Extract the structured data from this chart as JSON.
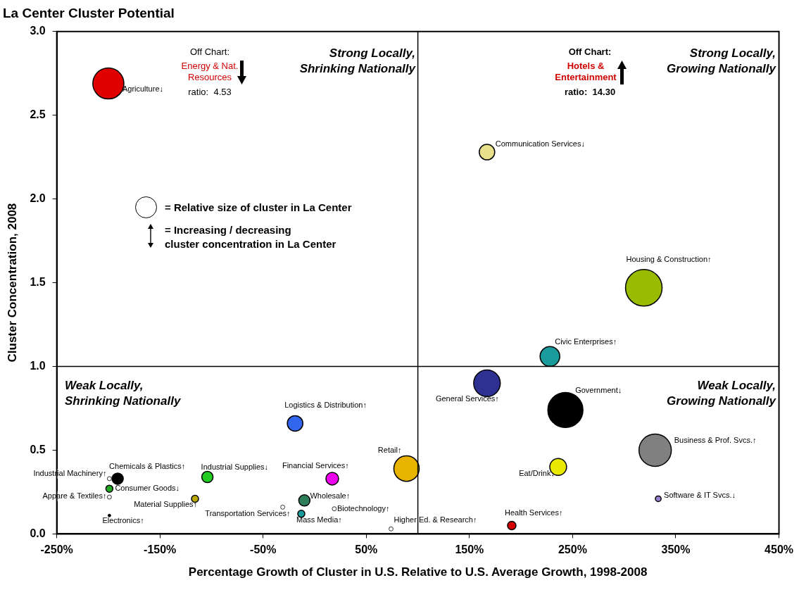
{
  "chart_data": {
    "type": "bubble",
    "title": "La Center Cluster Potential",
    "xlabel": "Percentage Growth of Cluster in U.S. Relative to U.S. Average Growth, 1998-2008",
    "ylabel": "Cluster Concentration, 2008",
    "xlim": [
      -250,
      450
    ],
    "xticks": [
      {
        "value": -250,
        "label": "-250%"
      },
      {
        "value": -150,
        "label": "-150%"
      },
      {
        "value": -50,
        "label": "-50%"
      },
      {
        "value": 50,
        "label": "50%"
      },
      {
        "value": 150,
        "label": "150%"
      },
      {
        "value": 250,
        "label": "250%"
      },
      {
        "value": 350,
        "label": "350%"
      },
      {
        "value": 450,
        "label": "450%"
      }
    ],
    "ylim": [
      0,
      3
    ],
    "yticks": [
      {
        "value": 0,
        "label": "0.0"
      },
      {
        "value": 0.5,
        "label": "0.5"
      },
      {
        "value": 1,
        "label": "1.0"
      },
      {
        "value": 1.5,
        "label": "1.5"
      },
      {
        "value": 2,
        "label": "2.0"
      },
      {
        "value": 2.5,
        "label": "2.5"
      },
      {
        "value": 3,
        "label": "3.0"
      }
    ],
    "grid": false,
    "legend": false,
    "ref_lines": [
      {
        "axis": "x",
        "value": 100,
        "color": "#000000"
      },
      {
        "axis": "y",
        "value": 1,
        "color": "#000000"
      }
    ],
    "annotations": [
      "Strong Locally,\nShrinking Nationally",
      "Strong Locally,\nGrowing Nationally",
      "Weak Locally,\nShrinking Nationally",
      "Weak Locally,\nGrowing Nationally",
      "Off Chart:",
      "Energy & Nat.\nResources",
      "ratio:  4.53",
      "Off Chart:",
      "Hotels &\nEntertainment",
      "ratio:  14.30",
      "= Relative size of cluster in La Center",
      "= Increasing / decreasing\ncluster concentration in La Center"
    ],
    "series": [
      {
        "name": "Agriculture↓",
        "color": "#e00000",
        "x": [
          -200
        ],
        "values": [
          2.69
        ],
        "sizes": [
          0.72
        ]
      },
      {
        "name": "Communication Services↓",
        "color": "#e8e08a",
        "x": [
          167
        ],
        "values": [
          2.28
        ],
        "sizes": [
          0.18
        ]
      },
      {
        "name": "Housing & Construction↑",
        "color": "#99bb00",
        "x": [
          319
        ],
        "values": [
          1.47
        ],
        "sizes": [
          1
        ]
      },
      {
        "name": "Civic Enterprises↑",
        "color": "#1a9a9a",
        "x": [
          228
        ],
        "values": [
          1.06
        ],
        "sizes": [
          0.29
        ]
      },
      {
        "name": "General Services↑",
        "color": "#2e3192",
        "x": [
          167
        ],
        "values": [
          0.9
        ],
        "sizes": [
          0.53
        ]
      },
      {
        "name": "Government↓",
        "color": "#000000",
        "x": [
          243
        ],
        "values": [
          0.74
        ],
        "sizes": [
          0.92
        ]
      },
      {
        "name": "Business & Prof. Svcs.↑",
        "color": "#808080",
        "x": [
          330
        ],
        "values": [
          0.5
        ],
        "sizes": [
          0.78
        ]
      },
      {
        "name": "Eat/Drink↓",
        "color": "#e8e800",
        "x": [
          236
        ],
        "values": [
          0.4
        ],
        "sizes": [
          0.21
        ]
      },
      {
        "name": "Software & IT Svcs.↓",
        "color": "#9a7fcf",
        "x": [
          333
        ],
        "values": [
          0.21
        ],
        "sizes": [
          0.024
        ]
      },
      {
        "name": "Health Services↑",
        "color": "#d40000",
        "x": [
          191
        ],
        "values": [
          0.05
        ],
        "sizes": [
          0.053
        ]
      },
      {
        "name": "Retail↑",
        "color": "#e8b400",
        "x": [
          89
        ],
        "values": [
          0.39
        ],
        "sizes": [
          0.48
        ]
      },
      {
        "name": "Higher Ed. & Research↑",
        "color": "#ffffff",
        "x": [
          74
        ],
        "values": [
          0.03
        ],
        "sizes": [
          0.013
        ]
      },
      {
        "name": "Logistics & Distribution↑",
        "color": "#3366ee",
        "x": [
          -19
        ],
        "values": [
          0.66
        ],
        "sizes": [
          0.18
        ]
      },
      {
        "name": "Financial Services↑",
        "color": "#ee00ee",
        "x": [
          17
        ],
        "values": [
          0.33
        ],
        "sizes": [
          0.12
        ]
      },
      {
        "name": "Wholesale↑",
        "color": "#2e7d5a",
        "x": [
          -10
        ],
        "values": [
          0.2
        ],
        "sizes": [
          0.095
        ]
      },
      {
        "name": "Biotechnology↑",
        "color": "#ffffff",
        "x": [
          19
        ],
        "values": [
          0.15
        ],
        "sizes": [
          0.013
        ]
      },
      {
        "name": "Mass Media↑",
        "color": "#1a9a9a",
        "x": [
          -13
        ],
        "values": [
          0.12
        ],
        "sizes": [
          0.037
        ]
      },
      {
        "name": "Transportation Services↑",
        "color": "#ffffff",
        "x": [
          -31
        ],
        "values": [
          0.16
        ],
        "sizes": [
          0.013
        ]
      },
      {
        "name": "Industrial Supplies↓",
        "color": "#22cc22",
        "x": [
          -104
        ],
        "values": [
          0.34
        ],
        "sizes": [
          0.095
        ]
      },
      {
        "name": "Material Supplies↑",
        "color": "#b8a800",
        "x": [
          -116
        ],
        "values": [
          0.21
        ],
        "sizes": [
          0.037
        ]
      },
      {
        "name": "Chemicals & Plastics↑",
        "color": "#000000",
        "x": [
          -191
        ],
        "values": [
          0.33
        ],
        "sizes": [
          0.095
        ]
      },
      {
        "name": "Industrial Machinery↑",
        "color": "#ffffff",
        "x": [
          -199
        ],
        "values": [
          0.33
        ],
        "sizes": [
          0.013
        ]
      },
      {
        "name": "Consumer Goods↓",
        "color": "#22aa22",
        "x": [
          -199
        ],
        "values": [
          0.27
        ],
        "sizes": [
          0.037
        ]
      },
      {
        "name": "Appare & Textiles↑",
        "color": "#ffffff",
        "x": [
          -199
        ],
        "values": [
          0.22
        ],
        "sizes": [
          0.013
        ]
      },
      {
        "name": "Electronics↑",
        "color": "#000000",
        "x": [
          -199
        ],
        "values": [
          0.11
        ],
        "sizes": [
          0.006
        ]
      }
    ]
  }
}
